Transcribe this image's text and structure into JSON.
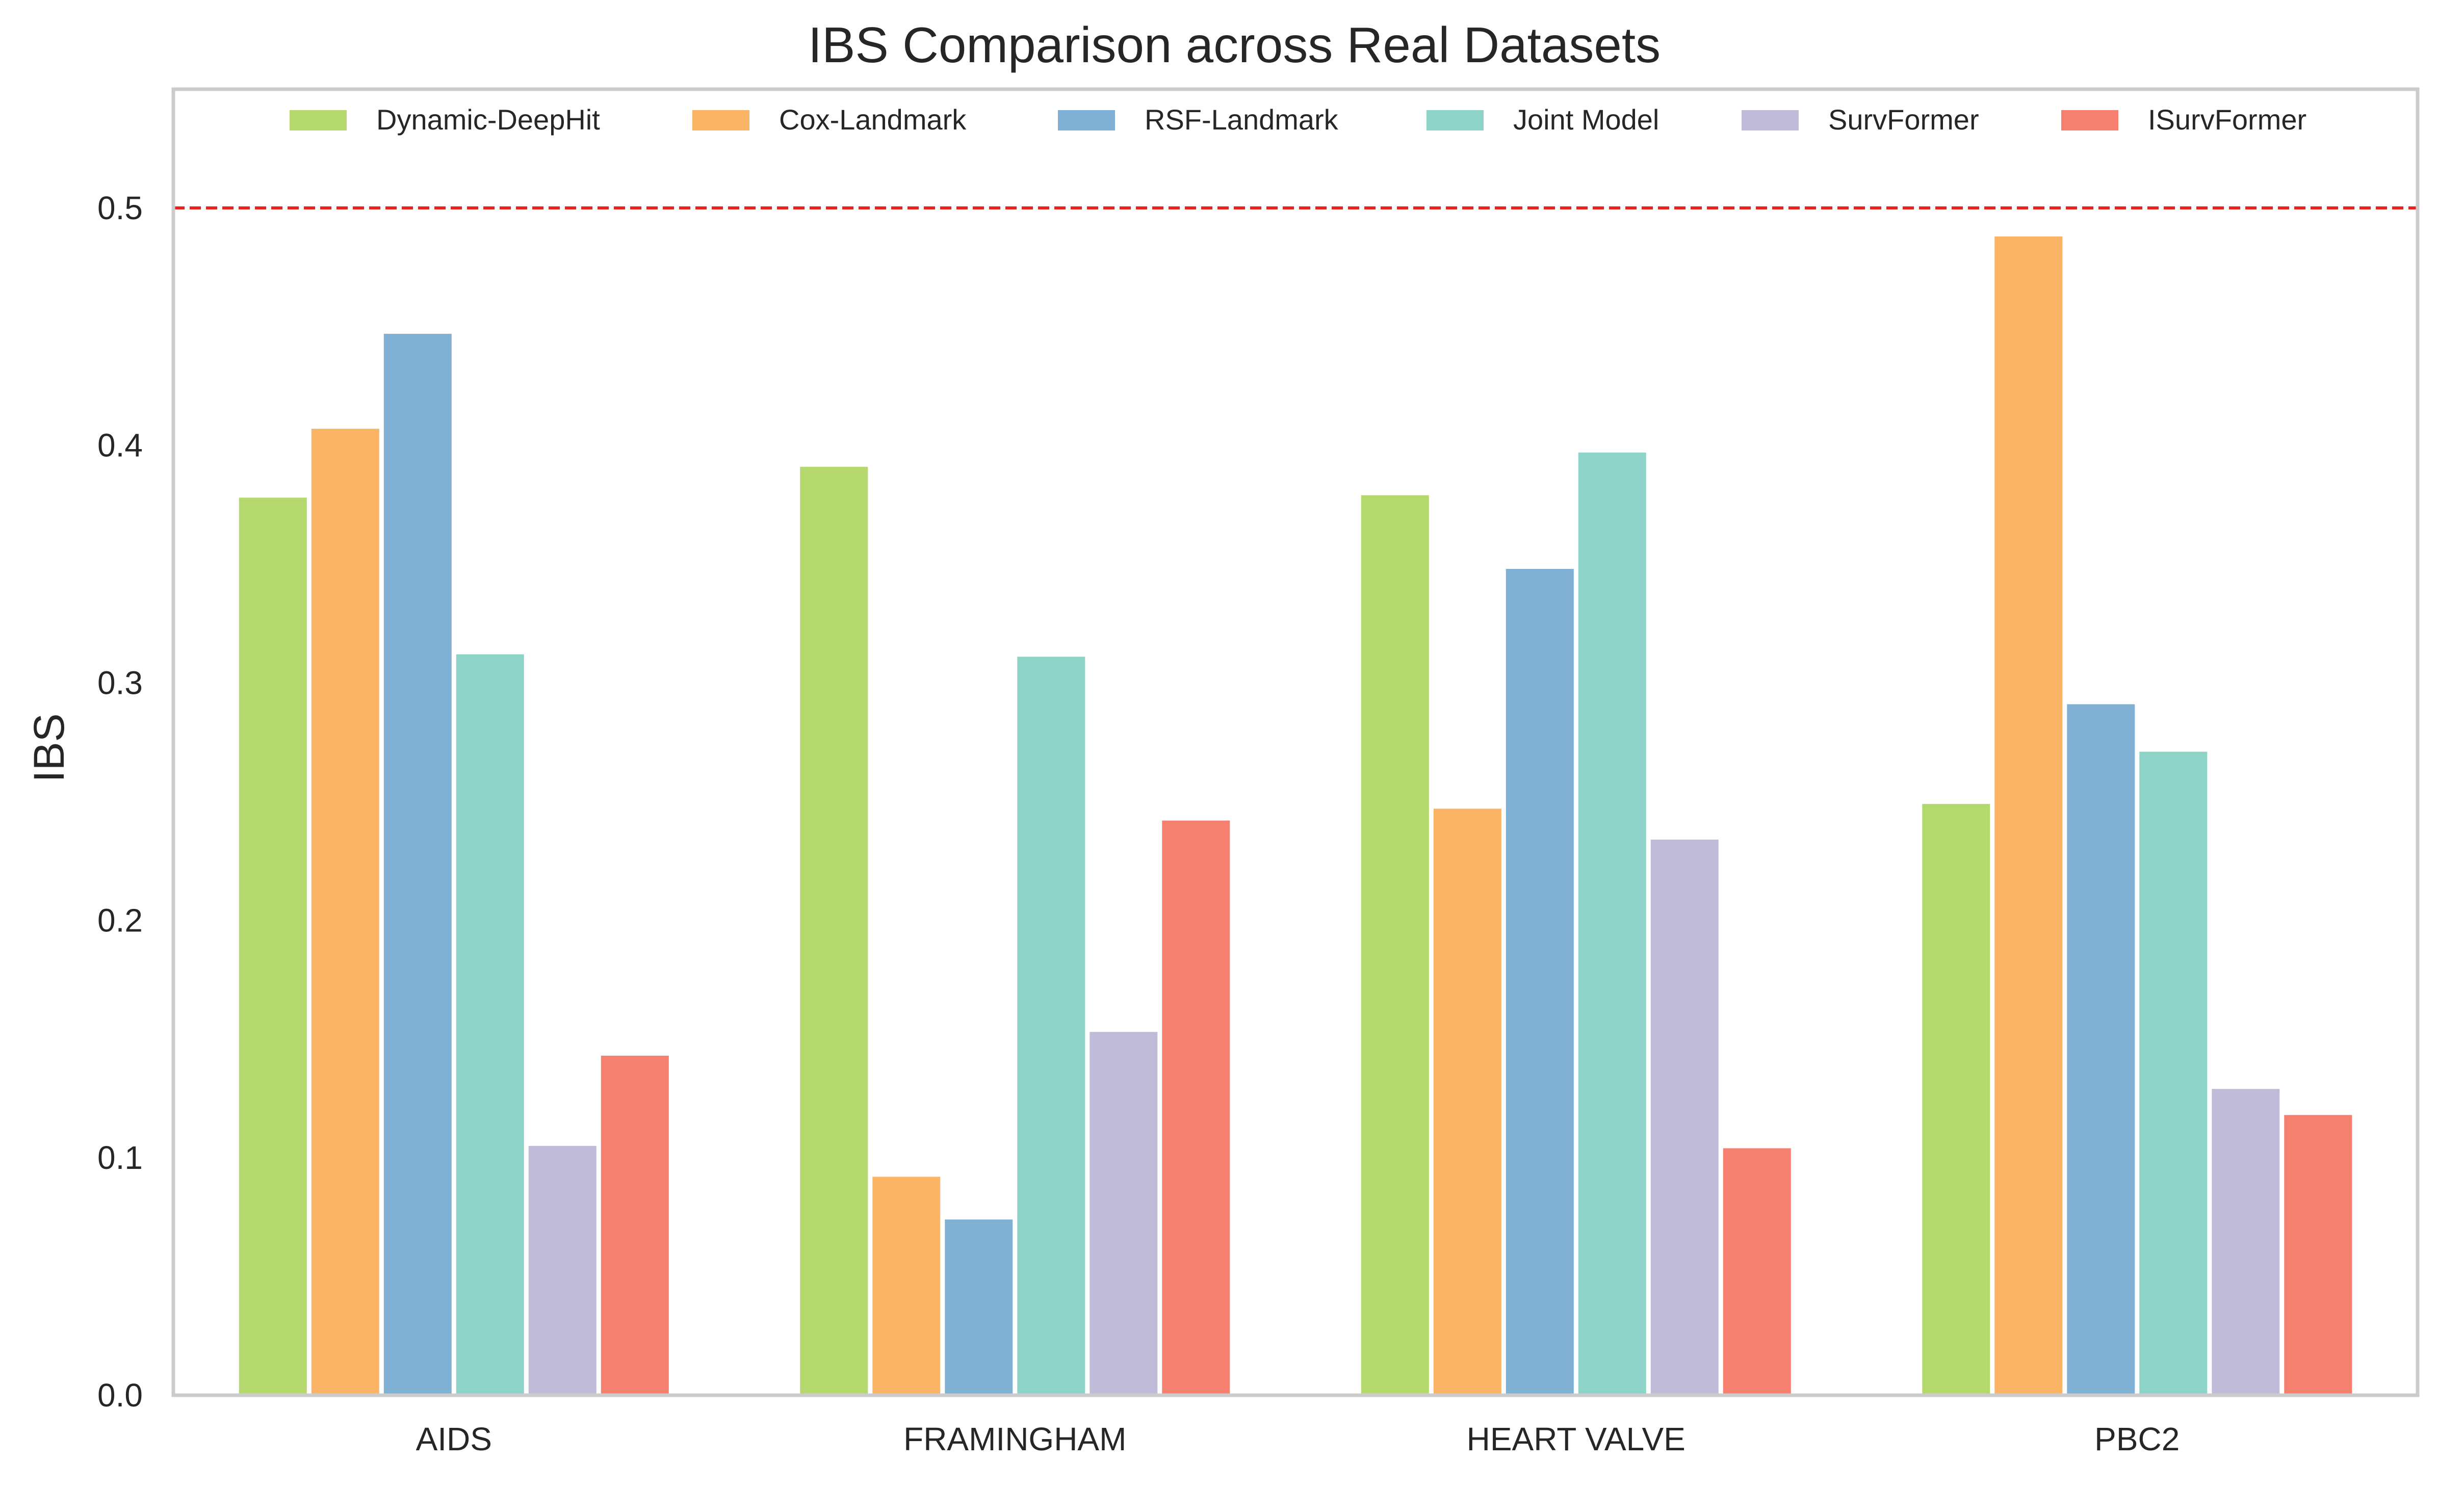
{
  "chart_data": {
    "type": "bar",
    "title": "IBS Comparison across Real Datasets",
    "xlabel": "",
    "ylabel": "IBS",
    "ylim": [
      0,
      0.55
    ],
    "yticks": [
      "0.0",
      "0.1",
      "0.2",
      "0.3",
      "0.4",
      "0.5"
    ],
    "categories": [
      "AIDS",
      "FRAMINGHAM",
      "HEART VALVE",
      "PBC2"
    ],
    "reference_line": {
      "y": 0.5,
      "style": "dashed",
      "color": "#e8211d"
    },
    "grid": false,
    "legend": "top",
    "series": [
      {
        "name": "Dynamic-DeepHit",
        "color": "#b5d86e",
        "values": [
          0.378,
          0.391,
          0.379,
          0.249
        ]
      },
      {
        "name": "Cox-Landmark",
        "color": "#fbb465",
        "values": [
          0.407,
          0.092,
          0.247,
          0.488
        ]
      },
      {
        "name": "RSF-Landmark",
        "color": "#80b1d4",
        "values": [
          0.447,
          0.074,
          0.348,
          0.291
        ]
      },
      {
        "name": "Joint Model",
        "color": "#8ed3c7",
        "values": [
          0.312,
          0.311,
          0.397,
          0.271
        ]
      },
      {
        "name": "SurvFormer",
        "color": "#bfbbd9",
        "values": [
          0.105,
          0.153,
          0.234,
          0.129
        ]
      },
      {
        "name": "ISurvFormer",
        "color": "#f6806f",
        "values": [
          0.143,
          0.242,
          0.104,
          0.118
        ]
      }
    ]
  }
}
